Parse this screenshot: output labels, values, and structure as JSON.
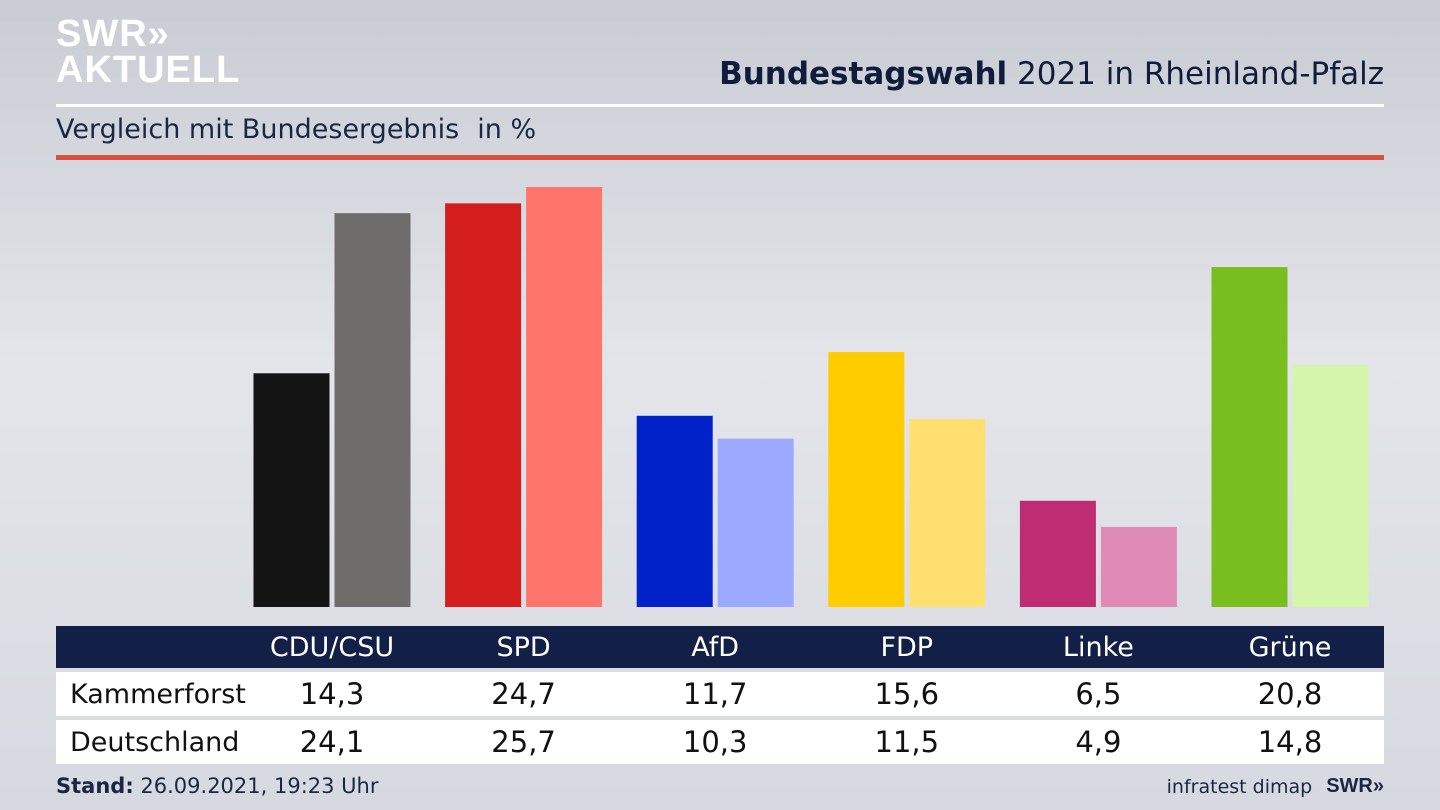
{
  "branding": {
    "logo_line1": "SWR»",
    "logo_line2": "AKTUELL",
    "small_logo": "SWR»",
    "source": "infratest dimap"
  },
  "header": {
    "title_bold": "Bundestagswahl",
    "title_rest": " 2021 in Rheinland-Pfalz",
    "subtitle": "Vergleich mit Bundesergebnis",
    "unit": "in %"
  },
  "footer": {
    "stand_label": "Stand:",
    "stand_value": " 26.09.2021, 19:23 Uhr"
  },
  "colors": {
    "local": [
      "#141414",
      "#d41e1e",
      "#0022c8",
      "#ffcc00",
      "#be2d73",
      "#78be1e"
    ],
    "national": [
      "#6f6d6b",
      "#ff746b",
      "#9ba9ff",
      "#ffe06f",
      "#e08ab8",
      "#d4f5aa"
    ]
  },
  "chart_data": {
    "type": "bar",
    "title": "Bundestagswahl 2021 in Rheinland-Pfalz",
    "subtitle": "Vergleich mit Bundesergebnis in %",
    "categories": [
      "CDU/CSU",
      "SPD",
      "AfD",
      "FDP",
      "Linke",
      "Grüne"
    ],
    "series": [
      {
        "name": "Kammerforst",
        "values": [
          14.3,
          24.7,
          11.7,
          15.6,
          6.5,
          20.8
        ],
        "labels": [
          "14,3",
          "24,7",
          "11,7",
          "15,6",
          "6,5",
          "20,8"
        ]
      },
      {
        "name": "Deutschland",
        "values": [
          24.1,
          25.7,
          10.3,
          11.5,
          4.9,
          14.8
        ],
        "labels": [
          "24,1",
          "25,7",
          "10,3",
          "11,5",
          "4,9",
          "14,8"
        ]
      }
    ],
    "ylim": [
      0,
      25.7
    ]
  }
}
